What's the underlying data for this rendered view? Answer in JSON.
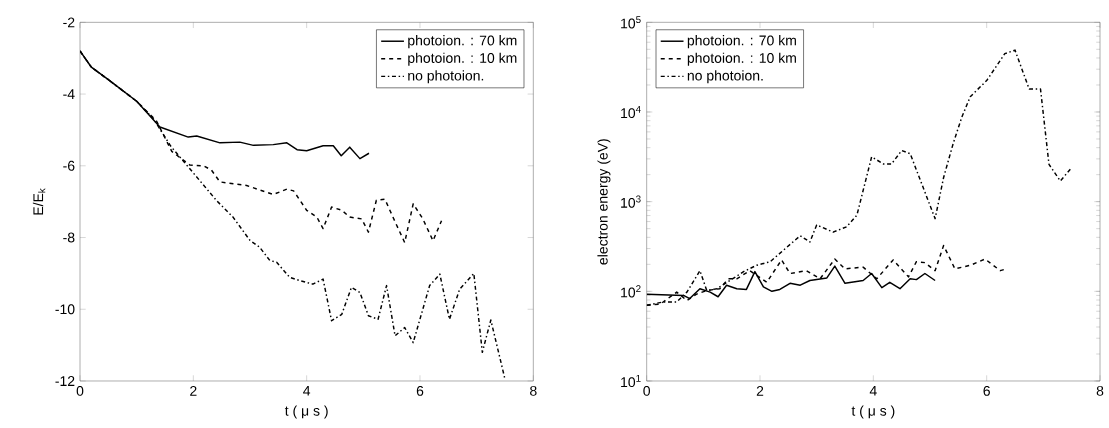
{
  "chart_data": [
    {
      "type": "line",
      "xlabel": "t ( μ s )",
      "ylabel": "E/E$_{k}$",
      "xlim": [
        0,
        8
      ],
      "ylim": [
        -12,
        -2
      ],
      "xticks": [
        0,
        2,
        4,
        6,
        8
      ],
      "yticks": [
        -12,
        -10,
        -8,
        -6,
        -4,
        -2
      ],
      "legend": "top right",
      "grid": false,
      "series": [
        {
          "name": "photoion. : 70 km",
          "color": "#000000",
          "line_style": "solid",
          "x": [
            0,
            0.2,
            0.5,
            1.0,
            1.41,
            1.91,
            2.06,
            2.47,
            2.82,
            3.06,
            3.41,
            3.65,
            3.83,
            4.0,
            4.29,
            4.47,
            4.61,
            4.76,
            4.94,
            5.1
          ],
          "values": [
            -2.8,
            -3.25,
            -3.6,
            -4.2,
            -4.92,
            -5.2,
            -5.17,
            -5.36,
            -5.34,
            -5.43,
            -5.41,
            -5.36,
            -5.55,
            -5.58,
            -5.44,
            -5.44,
            -5.72,
            -5.48,
            -5.8,
            -5.65
          ]
        },
        {
          "name": "photoion. : 10 km",
          "color": "#000000",
          "line_style": "dashed",
          "x": [
            0,
            0.2,
            0.5,
            1.0,
            1.35,
            1.62,
            1.94,
            2.18,
            2.32,
            2.47,
            2.94,
            3.41,
            3.65,
            3.77,
            4.0,
            4.18,
            4.29,
            4.44,
            4.62,
            4.76,
            4.97,
            5.09,
            5.23,
            5.38,
            5.58,
            5.73,
            5.88,
            6.05,
            6.23,
            6.38
          ],
          "values": [
            -2.8,
            -3.25,
            -3.6,
            -4.2,
            -4.75,
            -5.6,
            -5.98,
            -6.0,
            -6.12,
            -6.45,
            -6.55,
            -6.8,
            -6.65,
            -6.7,
            -7.24,
            -7.43,
            -7.75,
            -7.15,
            -7.24,
            -7.43,
            -7.48,
            -7.85,
            -6.96,
            -6.93,
            -7.63,
            -8.14,
            -7.06,
            -7.48,
            -8.09,
            -7.53
          ]
        },
        {
          "name": "no photoion.",
          "color": "#000000",
          "line_style": "dashdot",
          "x": [
            0,
            0.2,
            0.5,
            1.0,
            1.3,
            1.6,
            2.0,
            2.41,
            2.7,
            3.0,
            3.17,
            3.35,
            3.47,
            3.7,
            3.88,
            4.11,
            4.29,
            4.44,
            4.62,
            4.79,
            4.94,
            5.09,
            5.26,
            5.41,
            5.56,
            5.73,
            5.88,
            6.17,
            6.35,
            6.52,
            6.7,
            6.95,
            7.1,
            7.25,
            7.5
          ],
          "values": [
            -2.8,
            -3.25,
            -3.6,
            -4.2,
            -4.7,
            -5.45,
            -6.2,
            -6.97,
            -7.43,
            -8.08,
            -8.27,
            -8.64,
            -8.69,
            -9.11,
            -9.2,
            -9.3,
            -9.16,
            -10.32,
            -10.14,
            -9.39,
            -9.53,
            -10.18,
            -10.28,
            -9.34,
            -10.74,
            -10.51,
            -10.93,
            -9.34,
            -9.02,
            -10.28,
            -9.44,
            -9.0,
            -11.2,
            -10.3,
            -11.95
          ]
        }
      ]
    },
    {
      "type": "line",
      "xlabel": "t ( μ s )",
      "ylabel": "electron energy (eV)",
      "log": "y",
      "xlim": [
        0,
        8
      ],
      "ylim": [
        10,
        100000
      ],
      "xticks": [
        0,
        2,
        4,
        6,
        8
      ],
      "yticks": [
        {
          "value": 10,
          "label": "10$^{1}$"
        },
        {
          "value": 100,
          "label": "10$^{2}$"
        },
        {
          "value": 1000,
          "label": "10$^{3}$"
        },
        {
          "value": 10000,
          "label": "10$^{4}$"
        },
        {
          "value": 100000,
          "label": "10$^{5}$"
        }
      ],
      "legend": "top left",
      "grid": false,
      "series": [
        {
          "name": "photoion. : 70 km",
          "color": "#000000",
          "line_style": "solid",
          "x": [
            0,
            0.65,
            0.76,
            0.94,
            1.12,
            1.26,
            1.41,
            1.59,
            1.76,
            1.91,
            2.06,
            2.21,
            2.35,
            2.53,
            2.71,
            2.88,
            3.18,
            3.32,
            3.5,
            3.82,
            3.97,
            4.15,
            4.29,
            4.47,
            4.65,
            4.76,
            4.91,
            5.09
          ],
          "values": [
            93,
            90,
            83,
            107,
            98,
            87,
            117,
            107,
            105,
            166,
            112,
            100,
            105,
            123,
            117,
            132,
            141,
            191,
            123,
            132,
            158,
            110,
            126,
            107,
            138,
            135,
            158,
            132
          ]
        },
        {
          "name": "photoion. : 10 km",
          "color": "#000000",
          "line_style": "dashed",
          "x": [
            0,
            0.24,
            0.53,
            0.71,
            0.88,
            1.06,
            1.29,
            1.44,
            1.59,
            1.82,
            2.12,
            2.38,
            2.53,
            2.82,
            3.06,
            3.32,
            3.5,
            3.82,
            4.06,
            4.35,
            4.62,
            4.76,
            4.91,
            5.09,
            5.24,
            5.44,
            5.71,
            5.97,
            6.24,
            6.35
          ],
          "values": [
            70,
            72,
            98,
            79,
            93,
            102,
            107,
            138,
            138,
            170,
            126,
            224,
            158,
            170,
            138,
            229,
            178,
            186,
            138,
            224,
            145,
            214,
            209,
            170,
            324,
            178,
            195,
            229,
            170,
            178
          ]
        },
        {
          "name": "no photoion.",
          "color": "#000000",
          "line_style": "dashdot",
          "x": [
            0,
            0.29,
            0.53,
            0.71,
            0.94,
            1.06,
            1.24,
            1.47,
            1.71,
            1.94,
            2.18,
            2.47,
            2.71,
            2.88,
            3.0,
            3.29,
            3.53,
            3.71,
            3.97,
            4.18,
            4.32,
            4.5,
            4.65,
            5.09,
            5.24,
            5.41,
            5.56,
            5.71,
            6.0,
            6.32,
            6.5,
            6.75,
            6.95,
            7.1,
            7.3,
            7.5
          ],
          "values": [
            70,
            76,
            76,
            98,
            170,
            102,
            107,
            132,
            166,
            195,
            214,
            309,
            417,
            355,
            550,
            457,
            525,
            708,
            3162,
            2630,
            2630,
            3715,
            3430,
            646,
            1860,
            4470,
            8710,
            14800,
            22400,
            44700,
            49000,
            18000,
            18000,
            2600,
            1700,
            2400
          ]
        }
      ]
    }
  ]
}
